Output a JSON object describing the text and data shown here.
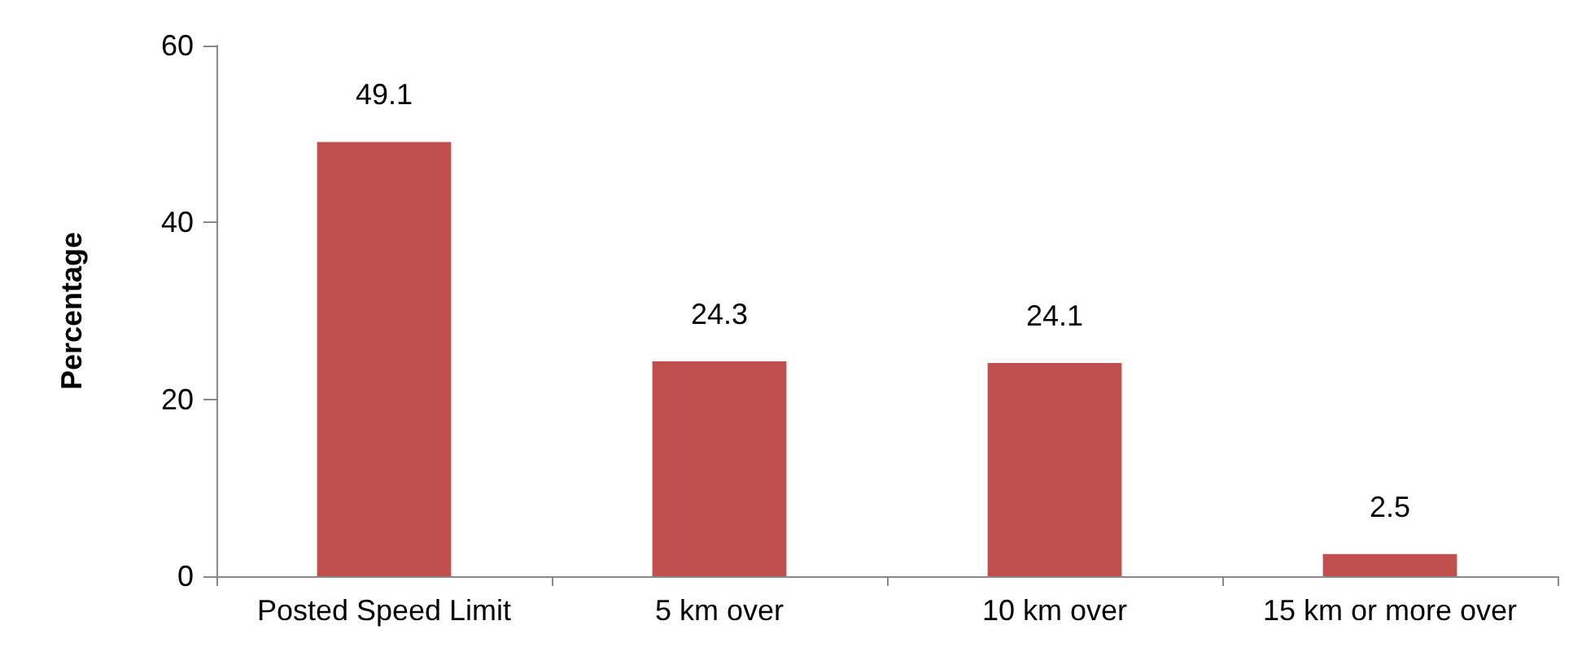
{
  "chart_data": {
    "type": "bar",
    "ylabel": "Percentage",
    "categories": [
      "Posted Speed Limit",
      "5 km over",
      "10 km over",
      "15 km or more over"
    ],
    "values": [
      49.1,
      24.3,
      24.1,
      2.5
    ],
    "color": "#c0504d",
    "ylim": [
      0,
      60
    ],
    "yticks": [
      0,
      20,
      40,
      60
    ],
    "grid": false,
    "data_labels": true
  }
}
